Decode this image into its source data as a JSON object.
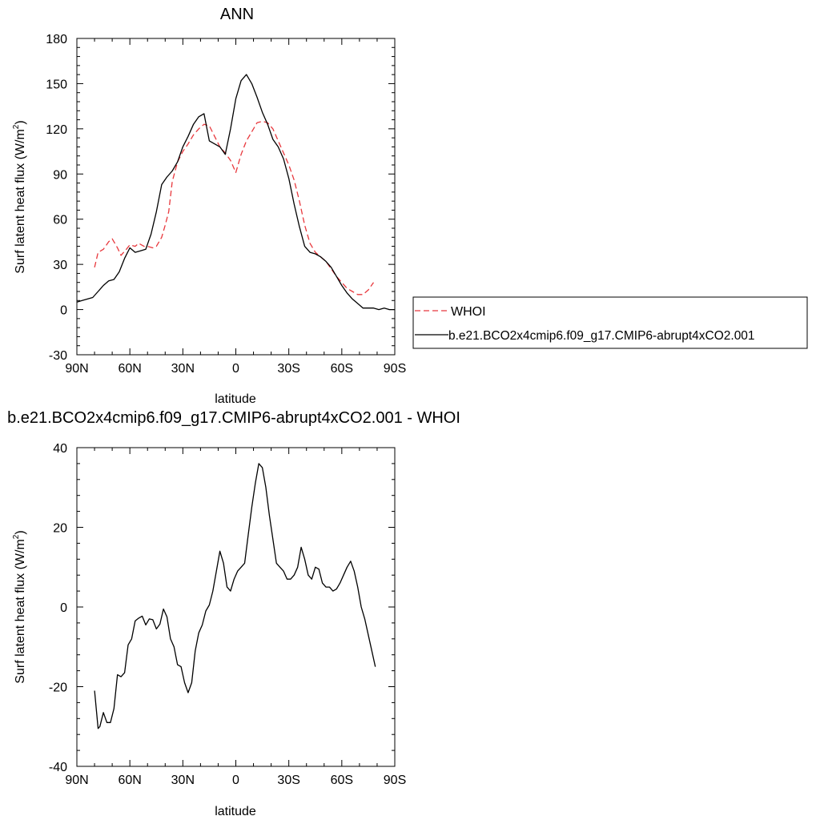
{
  "chart_data": [
    {
      "type": "line",
      "title": "ANN",
      "xlabel": "latitude",
      "ylabel": "Surf latent heat flux (W/m",
      "ylabel_sup": "2",
      "ylabel_close": ")",
      "xlim": [
        90,
        -90
      ],
      "ylim": [
        -30,
        180
      ],
      "x_ticks": [
        90,
        60,
        30,
        0,
        -30,
        -60,
        -90
      ],
      "x_tick_labels": [
        "90N",
        "60N",
        "30N",
        "0",
        "30S",
        "60S",
        "90S"
      ],
      "y_ticks": [
        -30,
        0,
        30,
        60,
        90,
        120,
        150,
        180
      ],
      "y_tick_labels": [
        "-30",
        "0",
        "30",
        "60",
        "90",
        "120",
        "150",
        "180"
      ],
      "legend_position": "right",
      "series": [
        {
          "name": "WHOI",
          "color": "#e8383d",
          "dash": "dashed",
          "x": [
            80,
            78,
            75,
            72,
            70,
            67,
            65,
            62,
            60,
            57,
            55,
            52,
            50,
            47,
            45,
            42,
            40,
            38,
            36,
            33,
            30,
            27,
            24,
            21,
            18,
            15,
            12,
            9,
            6,
            3,
            0,
            -3,
            -6,
            -9,
            -12,
            -15,
            -18,
            -21,
            -24,
            -27,
            -30,
            -33,
            -36,
            -39,
            -42,
            -45,
            -48,
            -51,
            -54,
            -57,
            -60,
            -63,
            -66,
            -69,
            -72,
            -75,
            -78
          ],
          "y": [
            28,
            38,
            40,
            45,
            47,
            41,
            36,
            40,
            43,
            42,
            44,
            42,
            42,
            41,
            42,
            48,
            56,
            65,
            85,
            98,
            105,
            110,
            116,
            120,
            123,
            122,
            115,
            108,
            104,
            99,
            91,
            103,
            112,
            118,
            124,
            125,
            124,
            120,
            112,
            104,
            96,
            86,
            72,
            56,
            44,
            38,
            35,
            32,
            27,
            22,
            18,
            14,
            12,
            10,
            10,
            13,
            18
          ]
        },
        {
          "name": "b.e21.BCO2x4cmip6.f09_g17.CMIP6-abrupt4xCO2.001",
          "color": "#000000",
          "dash": "solid",
          "x": [
            90,
            87,
            84,
            81,
            78,
            75,
            72,
            69,
            66,
            63,
            60,
            57,
            54,
            51,
            48,
            45,
            42,
            39,
            36,
            33,
            30,
            27,
            24,
            21,
            18,
            15,
            12,
            9,
            6,
            3,
            0,
            -3,
            -6,
            -9,
            -12,
            -15,
            -18,
            -21,
            -24,
            -27,
            -30,
            -33,
            -36,
            -39,
            -42,
            -45,
            -48,
            -51,
            -54,
            -57,
            -60,
            -63,
            -66,
            -69,
            -72,
            -75,
            -78,
            -81,
            -84,
            -87,
            -90
          ],
          "y": [
            5,
            6,
            7,
            8,
            12,
            16,
            19,
            20,
            25,
            34,
            41,
            38,
            39,
            40,
            50,
            65,
            83,
            88,
            92,
            98,
            108,
            115,
            123,
            128,
            130,
            112,
            110,
            108,
            103,
            120,
            140,
            152,
            156,
            150,
            141,
            131,
            123,
            113,
            108,
            100,
            87,
            70,
            55,
            42,
            38,
            37,
            35,
            32,
            28,
            22,
            16,
            11,
            7,
            4,
            1,
            1,
            1,
            0,
            1,
            0,
            0
          ]
        }
      ]
    },
    {
      "type": "line",
      "title": "b.e21.BCO2x4cmip6.f09_g17.CMIP6-abrupt4xCO2.001 - WHOI",
      "xlabel": "latitude",
      "ylabel": "Surf latent heat flux (W/m",
      "ylabel_sup": "2",
      "ylabel_close": ")",
      "xlim": [
        90,
        -90
      ],
      "ylim": [
        -40,
        40
      ],
      "x_ticks": [
        90,
        60,
        30,
        0,
        -30,
        -60,
        -90
      ],
      "x_tick_labels": [
        "90N",
        "60N",
        "30N",
        "0",
        "30S",
        "60S",
        "90S"
      ],
      "y_ticks": [
        -40,
        -20,
        0,
        20,
        40
      ],
      "y_tick_labels": [
        "-40",
        "-20",
        "0",
        "20",
        "40"
      ],
      "series": [
        {
          "color": "#000000",
          "dash": "solid",
          "x": [
            80,
            78,
            77,
            75,
            73,
            71,
            69,
            67,
            65,
            63,
            61,
            59,
            57,
            55,
            53,
            51,
            49,
            47,
            45,
            43,
            41,
            39,
            37,
            35,
            33,
            31,
            29,
            27,
            25,
            23,
            21,
            19,
            17,
            15,
            13,
            11,
            9,
            7,
            5,
            3,
            1,
            -1,
            -3,
            -5,
            -7,
            -9,
            -11,
            -13,
            -15,
            -17,
            -19,
            -21,
            -23,
            -25,
            -27,
            -29,
            -31,
            -33,
            -35,
            -37,
            -39,
            -41,
            -43,
            -45,
            -47,
            -49,
            -51,
            -53,
            -55,
            -57,
            -59,
            -61,
            -63,
            -65,
            -67,
            -69,
            -71,
            -73,
            -75,
            -77,
            -79
          ],
          "y": [
            -21,
            -30.5,
            -30,
            -26.5,
            -29,
            -29,
            -25.5,
            -17,
            -17.5,
            -16.5,
            -9.5,
            -8,
            -3.5,
            -2.8,
            -2.3,
            -4.5,
            -3,
            -3.2,
            -5.5,
            -4.3,
            -0.5,
            -2.5,
            -8,
            -10,
            -14.5,
            -15,
            -19,
            -21.5,
            -19,
            -11,
            -6.5,
            -4.5,
            -1,
            0.5,
            4,
            9,
            14,
            11,
            5,
            4,
            7,
            9,
            10,
            11,
            18,
            25,
            31,
            36,
            35,
            30,
            23,
            17,
            11,
            10,
            9,
            7,
            7,
            8,
            10,
            15,
            12,
            8,
            7,
            10,
            9.5,
            6,
            5,
            5,
            4,
            4.5,
            6,
            8,
            10,
            11.5,
            9,
            5,
            0,
            -3,
            -7,
            -11,
            -15
          ]
        }
      ]
    }
  ]
}
